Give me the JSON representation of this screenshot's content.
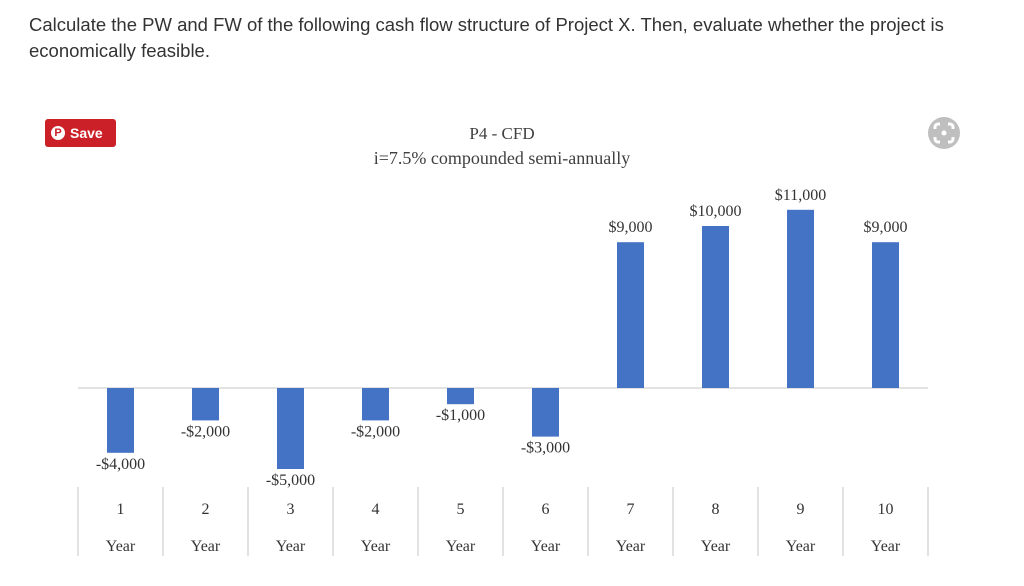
{
  "question": {
    "text": "Calculate the PW and FW of the following cash flow structure of Project X. Then, evaluate whether the project is economically feasible."
  },
  "save_button": {
    "label": "Save",
    "icon": "pinterest-icon"
  },
  "expand_button": {
    "icon": "expand-icon"
  },
  "colors": {
    "bar": "#4472c4",
    "save": "#cb2027",
    "axis": "#d9d9d9",
    "text": "#333333"
  },
  "chart_data": {
    "type": "bar",
    "title": "P4 - CFD",
    "subtitle": "i=7.5% compounded semi-annually",
    "categories": [
      "1",
      "2",
      "3",
      "4",
      "5",
      "6",
      "7",
      "8",
      "9",
      "10"
    ],
    "category_sublabel": "Year",
    "values": [
      -4000,
      -2000,
      -5000,
      -2000,
      -1000,
      -3000,
      9000,
      10000,
      11000,
      9000
    ],
    "data_labels": [
      "-$4,000",
      "-$2,000",
      "-$5,000",
      "-$2,000",
      "-$1,000",
      "-$3,000",
      "$9,000",
      "$10,000",
      "$11,000",
      "$9,000"
    ],
    "ylim": [
      -5000,
      11000
    ],
    "xlabel": "",
    "ylabel": "",
    "grid": false,
    "legend": "none"
  }
}
